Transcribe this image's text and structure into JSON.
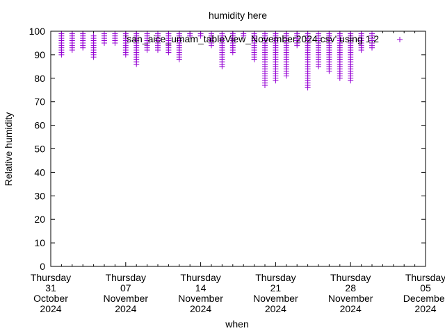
{
  "chart_data": {
    "type": "scatter",
    "title": "humidity here",
    "xlabel": "when",
    "ylabel": "Relative humidity",
    "ylim": [
      0,
      100
    ],
    "yticks": [
      "0",
      "10",
      "20",
      "30",
      "40",
      "50",
      "60",
      "70",
      "80",
      "90",
      "100"
    ],
    "xlim_days_from_oct31": [
      0,
      35
    ],
    "xticks": [
      {
        "day": 0,
        "lines": [
          "Thursday",
          "31",
          "October",
          "2024"
        ]
      },
      {
        "day": 7,
        "lines": [
          "Thursday",
          "07",
          "November",
          "2024"
        ]
      },
      {
        "day": 14,
        "lines": [
          "Thursday",
          "14",
          "November",
          "2024"
        ]
      },
      {
        "day": 21,
        "lines": [
          "Thursday",
          "21",
          "November",
          "2024"
        ]
      },
      {
        "day": 28,
        "lines": [
          "Thursday",
          "28",
          "November",
          "2024"
        ]
      },
      {
        "day": 35,
        "lines": [
          "Thursday",
          "05",
          "December",
          "2024"
        ]
      }
    ],
    "legend": {
      "label": "'san_aice_umam_tableView_November2024.csv' using 1:2",
      "placement": "top-right"
    },
    "series": [
      {
        "name": "'san_aice_umam_tableView_November2024.csv' using 1:2",
        "color": "#9400d3",
        "marker": "+",
        "daily_ranges": [
          {
            "day": 1,
            "min": 90,
            "max": 99
          },
          {
            "day": 2,
            "min": 92,
            "max": 99
          },
          {
            "day": 3,
            "min": 93,
            "max": 99
          },
          {
            "day": 4,
            "min": 89,
            "max": 98
          },
          {
            "day": 5,
            "min": 95,
            "max": 99
          },
          {
            "day": 6,
            "min": 95,
            "max": 99
          },
          {
            "day": 7,
            "min": 90,
            "max": 99
          },
          {
            "day": 8,
            "min": 86,
            "max": 99
          },
          {
            "day": 9,
            "min": 92,
            "max": 99
          },
          {
            "day": 10,
            "min": 92,
            "max": 99
          },
          {
            "day": 11,
            "min": 91,
            "max": 99
          },
          {
            "day": 12,
            "min": 88,
            "max": 99
          },
          {
            "day": 13,
            "min": 98,
            "max": 99
          },
          {
            "day": 14,
            "min": 98,
            "max": 99
          },
          {
            "day": 15,
            "min": 94,
            "max": 99
          },
          {
            "day": 16,
            "min": 85,
            "max": 99
          },
          {
            "day": 17,
            "min": 91,
            "max": 99
          },
          {
            "day": 18,
            "min": 98,
            "max": 99
          },
          {
            "day": 19,
            "min": 88,
            "max": 99
          },
          {
            "day": 20,
            "min": 77,
            "max": 99
          },
          {
            "day": 21,
            "min": 79,
            "max": 99
          },
          {
            "day": 22,
            "min": 81,
            "max": 99
          },
          {
            "day": 23,
            "min": 94,
            "max": 99
          },
          {
            "day": 24,
            "min": 76,
            "max": 99
          },
          {
            "day": 25,
            "min": 85,
            "max": 99
          },
          {
            "day": 26,
            "min": 83,
            "max": 99
          },
          {
            "day": 27,
            "min": 80,
            "max": 99
          },
          {
            "day": 28,
            "min": 79,
            "max": 99
          },
          {
            "day": 29,
            "min": 92,
            "max": 99
          },
          {
            "day": 30,
            "min": 93,
            "max": 99
          }
        ]
      }
    ]
  }
}
